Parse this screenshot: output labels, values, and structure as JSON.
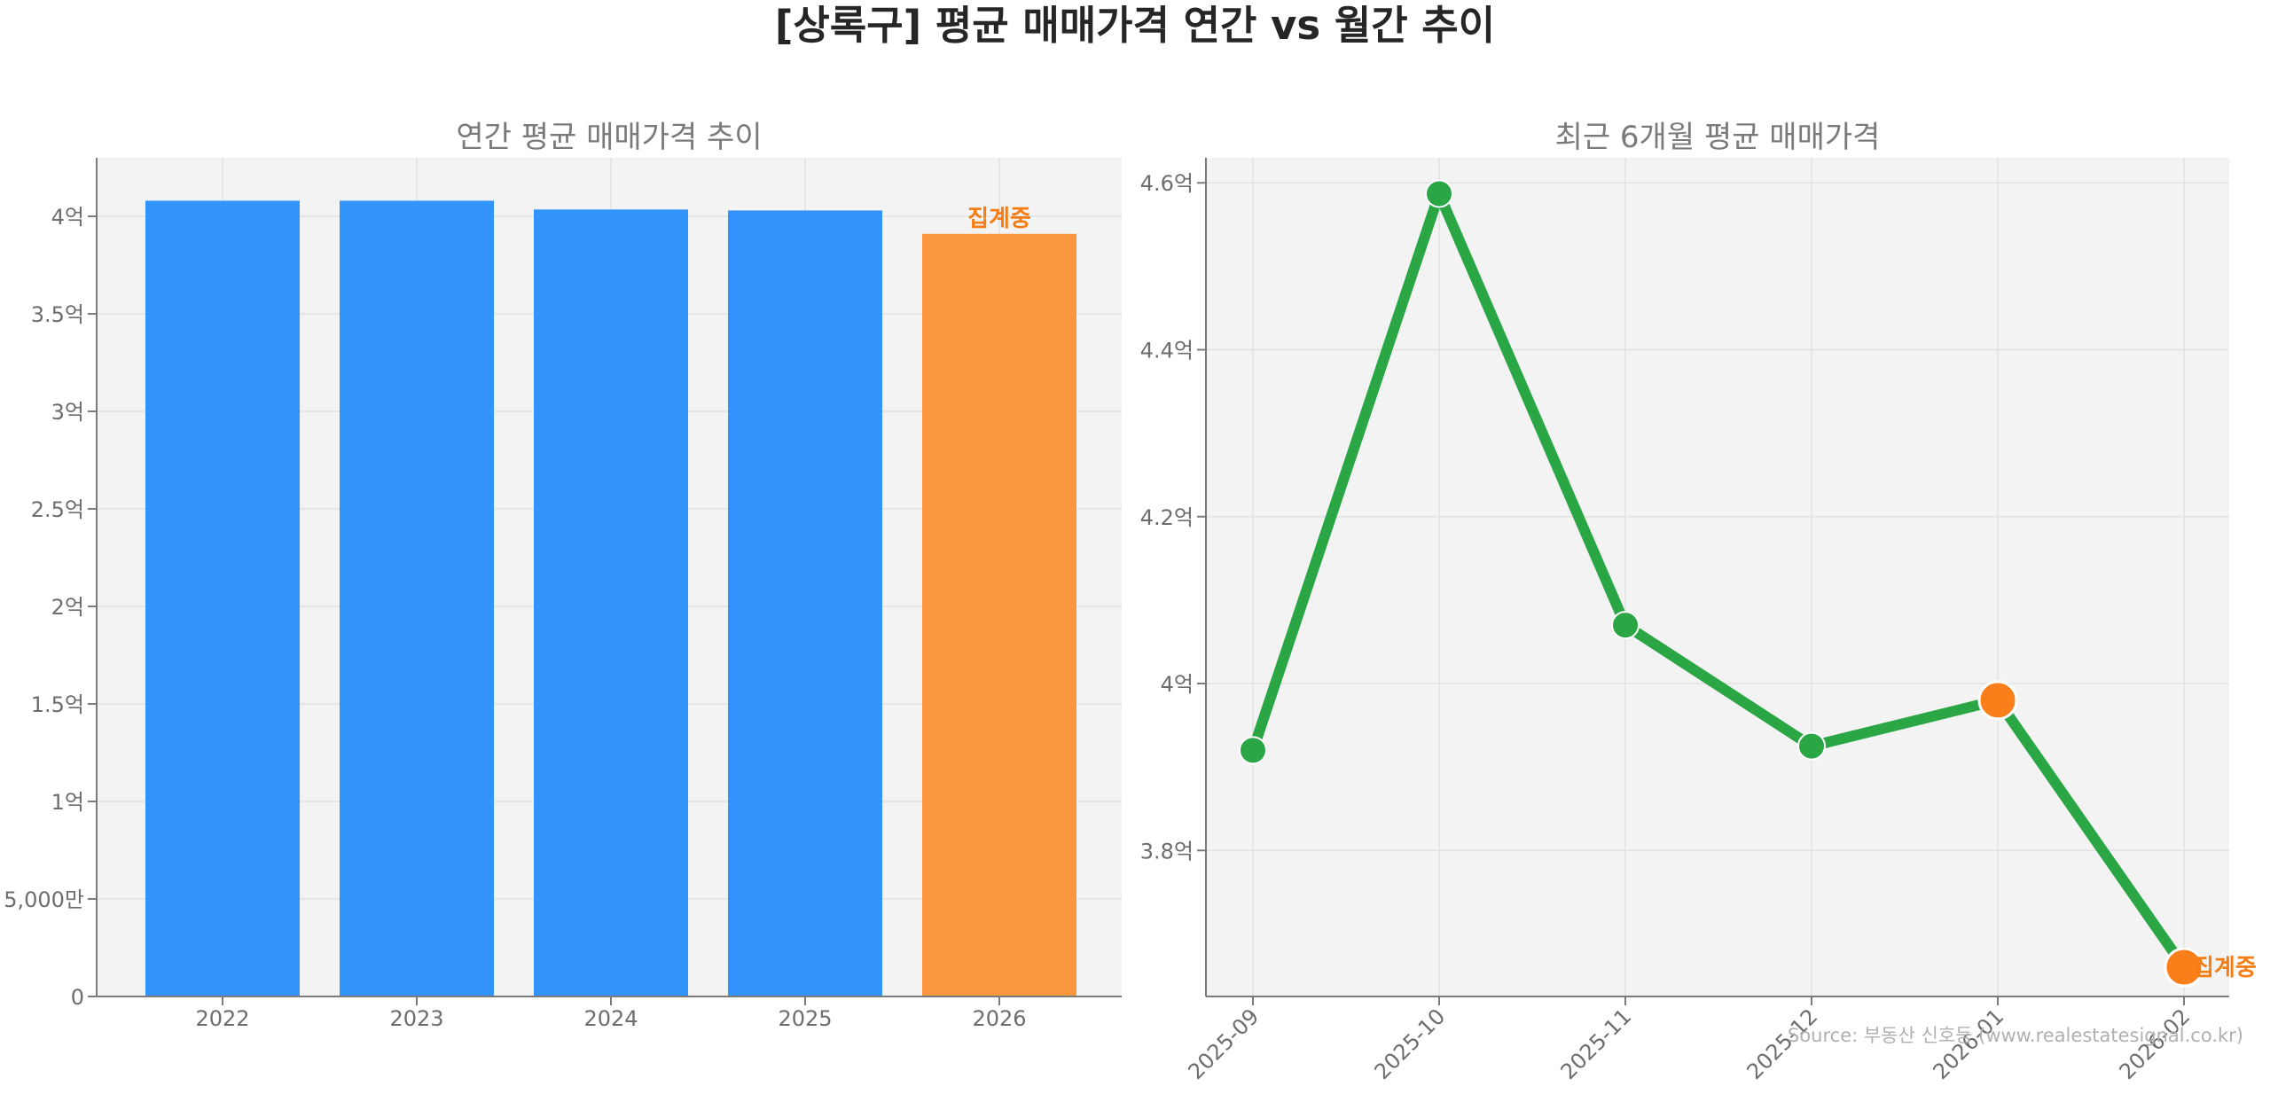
{
  "title": "[상록구] 평균 매매가격 연간 vs 월간 추이",
  "source": "Source: 부동산 신호등 (www.realestatesignal.co.kr)",
  "colors": {
    "bar_complete": "#3293fa",
    "bar_partial": "#f9963e",
    "line": "#2aa645",
    "marker_partial": "#fa7f1a",
    "partial_label": "#f57d14",
    "plot_bg": "#f3f3f3",
    "tick_text": "#6d6d6d",
    "subtitle_text": "#7a7a7a"
  },
  "chart_data": [
    {
      "type": "bar",
      "title": "연간 평균 매매가격 추이",
      "xlabel": "",
      "ylabel": "",
      "categories": [
        "2022",
        "2023",
        "2024",
        "2025",
        "2026"
      ],
      "values": [
        40800,
        40800,
        40350,
        40300,
        39100
      ],
      "partial": [
        false,
        false,
        false,
        false,
        true
      ],
      "unit": "만원",
      "ylim": [
        0,
        43000
      ],
      "yticks": [
        {
          "value": 0,
          "label": "0"
        },
        {
          "value": 5000,
          "label": "5,000만"
        },
        {
          "value": 10000,
          "label": "1억"
        },
        {
          "value": 15000,
          "label": "1.5억"
        },
        {
          "value": 20000,
          "label": "2억"
        },
        {
          "value": 25000,
          "label": "2.5억"
        },
        {
          "value": 30000,
          "label": "3억"
        },
        {
          "value": 35000,
          "label": "3.5억"
        },
        {
          "value": 40000,
          "label": "4억"
        }
      ],
      "annotations": [
        {
          "category": "2026",
          "text": "집계중"
        }
      ],
      "grid": true,
      "legend": "none"
    },
    {
      "type": "line",
      "title": "최근 6개월 평균 매매가격",
      "xlabel": "",
      "ylabel": "",
      "x": [
        "2025-09",
        "2025-10",
        "2025-11",
        "2025-12",
        "2026-01",
        "2026-02"
      ],
      "values": [
        39200,
        45870,
        40700,
        39250,
        39800,
        36600
      ],
      "partial": [
        false,
        false,
        false,
        false,
        true,
        true
      ],
      "unit": "만원",
      "ylim": [
        36250,
        46300
      ],
      "yticks": [
        {
          "value": 38000,
          "label": "3.8억"
        },
        {
          "value": 40000,
          "label": "4억"
        },
        {
          "value": 42000,
          "label": "4.2억"
        },
        {
          "value": 44000,
          "label": "4.4억"
        },
        {
          "value": 46000,
          "label": "4.6억"
        }
      ],
      "annotations": [
        {
          "x": "2026-02",
          "text": "집계중"
        }
      ],
      "grid": true,
      "legend": "none"
    }
  ]
}
